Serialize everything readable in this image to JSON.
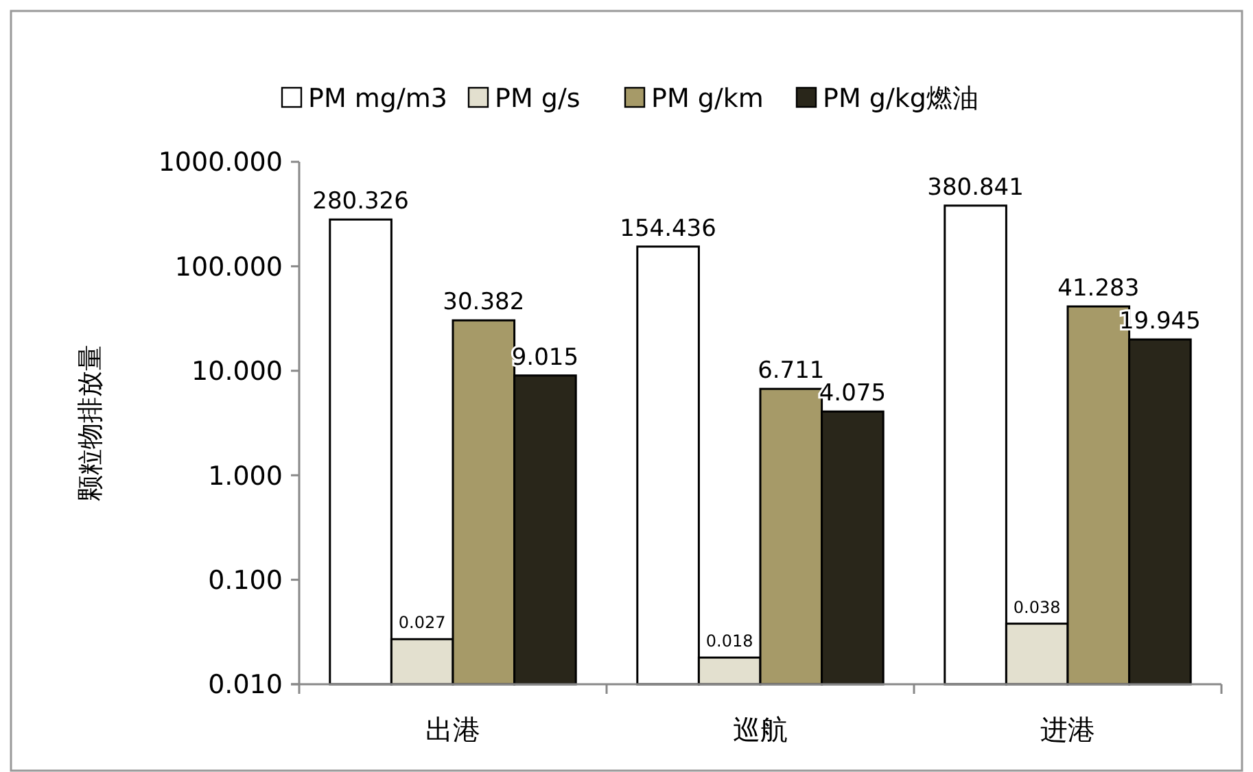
{
  "chart_data": {
    "type": "bar",
    "ylabel": "颗粒物排放量",
    "categories": [
      "出港",
      "巡航",
      "进港"
    ],
    "series": [
      {
        "name": "PM mg/m3",
        "color": "#ffffff",
        "values": [
          280.326,
          154.436,
          380.841
        ]
      },
      {
        "name": "PM g/s",
        "color": "#e3e0cf",
        "values": [
          0.027,
          0.018,
          0.038
        ]
      },
      {
        "name": "PM g/km",
        "color": "#a69a68",
        "values": [
          30.382,
          6.711,
          41.283
        ]
      },
      {
        "name": "PM g/kg燃油",
        "color": "#29261a",
        "values": [
          9.015,
          4.075,
          19.945
        ]
      }
    ],
    "log": true,
    "ylim": [
      0.01,
      1000
    ],
    "yticks": [
      {
        "value": 0.01,
        "label": "0.010"
      },
      {
        "value": 0.1,
        "label": "0.100"
      },
      {
        "value": 1,
        "label": "1.000"
      },
      {
        "value": 10,
        "label": "10.000"
      },
      {
        "value": 100,
        "label": "100.000"
      },
      {
        "value": 1000,
        "label": "1000.000"
      }
    ],
    "data_labels": true,
    "legend": "top",
    "grid": false
  }
}
